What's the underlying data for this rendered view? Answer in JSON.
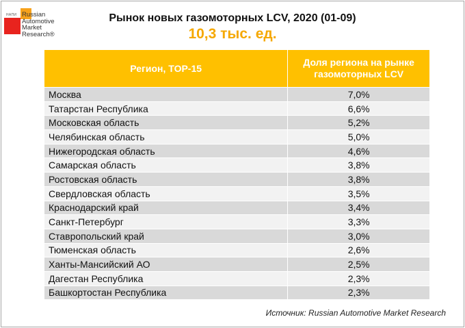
{
  "logo": {
    "abbr": "НАПИ",
    "line1": "Russian",
    "line2": "Automotive",
    "line3": "Market",
    "line4": "Research®"
  },
  "chart_data": {
    "type": "table",
    "title": "Рынок новых газомоторных LCV, 2020 (01-09)",
    "subtitle": "10,3 тыс. ед.",
    "columns": [
      "Регион, TOP-15",
      "Доля региона на рынке газомоторных LCV"
    ],
    "rows": [
      {
        "region": "Москва",
        "share": "7,0%",
        "value": 7.0
      },
      {
        "region": "Татарстан Республика",
        "share": "6,6%",
        "value": 6.6
      },
      {
        "region": "Московская область",
        "share": "5,2%",
        "value": 5.2
      },
      {
        "region": "Челябинская область",
        "share": "5,0%",
        "value": 5.0
      },
      {
        "region": "Нижегородская область",
        "share": "4,6%",
        "value": 4.6
      },
      {
        "region": "Самарская область",
        "share": "3,8%",
        "value": 3.8
      },
      {
        "region": "Ростовская область",
        "share": "3,8%",
        "value": 3.8
      },
      {
        "region": "Свердловская область",
        "share": "3,5%",
        "value": 3.5
      },
      {
        "region": "Краснодарский край",
        "share": "3,4%",
        "value": 3.4
      },
      {
        "region": "Санкт-Петербург",
        "share": "3,3%",
        "value": 3.3
      },
      {
        "region": "Ставропольский край",
        "share": "3,0%",
        "value": 3.0
      },
      {
        "region": "Тюменская область",
        "share": "2,6%",
        "value": 2.6
      },
      {
        "region": "Ханты-Мансийский АО",
        "share": "2,5%",
        "value": 2.5
      },
      {
        "region": "Дагестан Республика",
        "share": "2,3%",
        "value": 2.3
      },
      {
        "region": "Башкортостан Республика",
        "share": "2,3%",
        "value": 2.3
      }
    ],
    "source": "Источник: Russian Automotive Market Research"
  },
  "colors": {
    "header": "#ffc000",
    "subtitle": "#f5a800",
    "row_dark": "#d9d9d9",
    "row_light": "#f2f2f2",
    "logo_red": "#e8231e",
    "logo_orange": "#f7a21b"
  }
}
